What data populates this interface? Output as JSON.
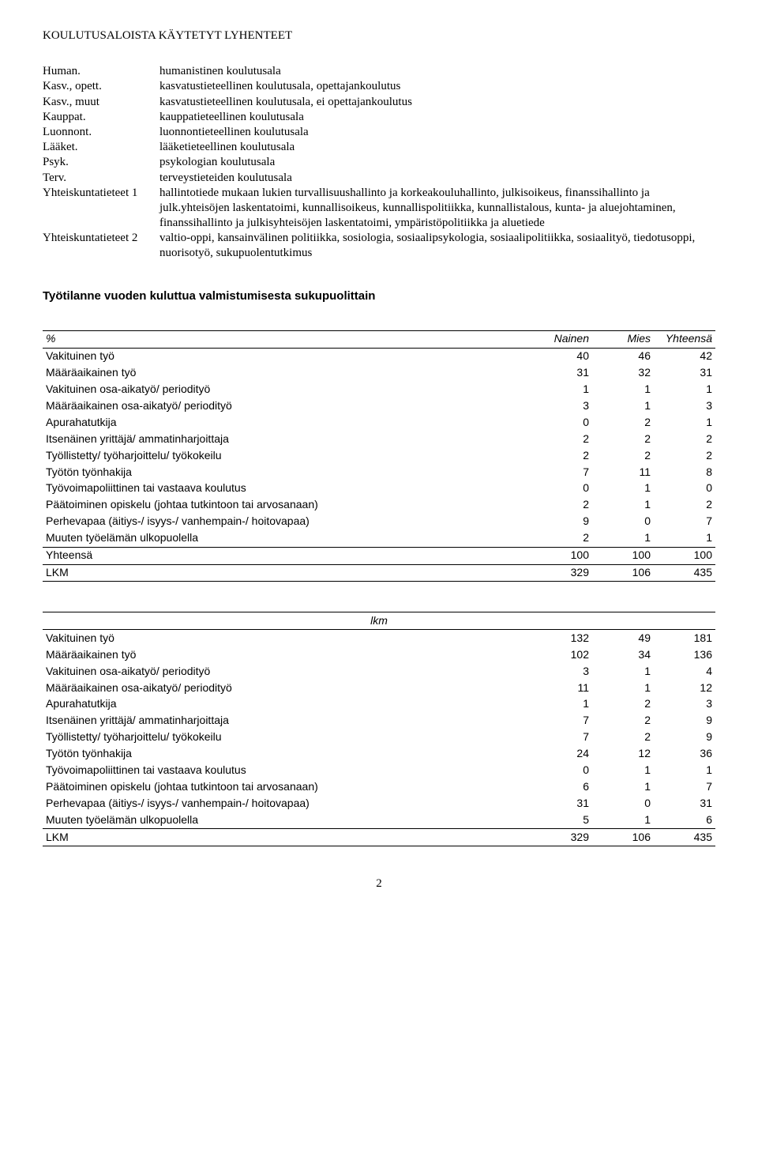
{
  "heading": "KOULUTUSALOISTA KÄYTETYT LYHENTEET",
  "abbrevs": [
    {
      "term": "Human.",
      "def": "humanistinen koulutusala"
    },
    {
      "term": "Kasv., opett.",
      "def": "kasvatustieteellinen koulutusala, opettajankoulutus"
    },
    {
      "term": "Kasv., muut",
      "def": "kasvatustieteellinen koulutusala, ei opettajankoulutus"
    },
    {
      "term": "Kauppat.",
      "def": "kauppatieteellinen koulutusala"
    },
    {
      "term": "Luonnont.",
      "def": "luonnontieteellinen koulutusala"
    },
    {
      "term": "Lääket.",
      "def": "lääketieteellinen koulutusala"
    },
    {
      "term": "Psyk.",
      "def": "psykologian koulutusala"
    },
    {
      "term": "Terv.",
      "def": "terveystieteiden koulutusala"
    },
    {
      "term": "Yhteiskuntatieteet 1",
      "def": "hallintotiede mukaan lukien turvallisuushallinto ja korkeakouluhallinto, julkisoikeus, finanssihallinto ja julk.yhteisöjen laskentatoimi, kunnallisoikeus, kunnallispolitiikka, kunnallistalous, kunta- ja aluejohtaminen, finanssihallinto ja julkisyhteisöjen laskentatoimi, ympäristöpolitiikka ja aluetiede"
    },
    {
      "term": "Yhteiskuntatieteet 2",
      "def": "valtio-oppi, kansainvälinen politiikka, sosiologia, sosiaalipsykologia, sosiaalipolitiikka, sosiaalityö, tiedotusoppi, nuorisotyö, sukupuolentutkimus"
    }
  ],
  "subheading": "Työtilanne vuoden kuluttua valmistumisesta sukupuolittain",
  "table1": {
    "head_pct": "%",
    "head_cols": [
      "Nainen",
      "Mies",
      "Yhteensä"
    ],
    "rows": [
      {
        "label": "Vakituinen työ",
        "c": [
          "40",
          "46",
          "42"
        ]
      },
      {
        "label": "Määräaikainen työ",
        "c": [
          "31",
          "32",
          "31"
        ]
      },
      {
        "label": "Vakituinen osa-aikatyö/ periodityö",
        "c": [
          "1",
          "1",
          "1"
        ]
      },
      {
        "label": "Määräaikainen osa-aikatyö/ periodityö",
        "c": [
          "3",
          "1",
          "3"
        ]
      },
      {
        "label": "Apurahatutkija",
        "c": [
          "0",
          "2",
          "1"
        ]
      },
      {
        "label": "Itsenäinen yrittäjä/ ammatinharjoittaja",
        "c": [
          "2",
          "2",
          "2"
        ]
      },
      {
        "label": "Työllistetty/ työharjoittelu/ työkokeilu",
        "c": [
          "2",
          "2",
          "2"
        ]
      },
      {
        "label": "Työtön työnhakija",
        "c": [
          "7",
          "11",
          "8"
        ]
      },
      {
        "label": "Työvoimapoliittinen tai vastaava koulutus",
        "c": [
          "0",
          "1",
          "0"
        ]
      },
      {
        "label": "Päätoiminen opiskelu (johtaa tutkintoon tai arvosanaan)",
        "c": [
          "2",
          "1",
          "2"
        ]
      },
      {
        "label": "Perhevapaa (äitiys-/ isyys-/ vanhempain-/ hoitovapaa)",
        "c": [
          "9",
          "0",
          "7"
        ]
      },
      {
        "label": "Muuten työelämän ulkopuolella",
        "c": [
          "2",
          "1",
          "1"
        ]
      }
    ],
    "total_label": "Yhteensä",
    "total": [
      "100",
      "100",
      "100"
    ],
    "lkm_label": "LKM",
    "lkm": [
      "329",
      "106",
      "435"
    ]
  },
  "table2": {
    "head_lkm": "lkm",
    "rows": [
      {
        "label": "Vakituinen työ",
        "c": [
          "132",
          "49",
          "181"
        ]
      },
      {
        "label": "Määräaikainen työ",
        "c": [
          "102",
          "34",
          "136"
        ]
      },
      {
        "label": "Vakituinen osa-aikatyö/ periodityö",
        "c": [
          "3",
          "1",
          "4"
        ]
      },
      {
        "label": "Määräaikainen osa-aikatyö/ periodityö",
        "c": [
          "11",
          "1",
          "12"
        ]
      },
      {
        "label": "Apurahatutkija",
        "c": [
          "1",
          "2",
          "3"
        ]
      },
      {
        "label": "Itsenäinen yrittäjä/ ammatinharjoittaja",
        "c": [
          "7",
          "2",
          "9"
        ]
      },
      {
        "label": "Työllistetty/ työharjoittelu/ työkokeilu",
        "c": [
          "7",
          "2",
          "9"
        ]
      },
      {
        "label": "Työtön työnhakija",
        "c": [
          "24",
          "12",
          "36"
        ]
      },
      {
        "label": "Työvoimapoliittinen tai vastaava koulutus",
        "c": [
          "0",
          "1",
          "1"
        ]
      },
      {
        "label": "Päätoiminen opiskelu (johtaa tutkintoon tai arvosanaan)",
        "c": [
          "6",
          "1",
          "7"
        ]
      },
      {
        "label": "Perhevapaa (äitiys-/ isyys-/ vanhempain-/ hoitovapaa)",
        "c": [
          "31",
          "0",
          "31"
        ]
      },
      {
        "label": "Muuten työelämän ulkopuolella",
        "c": [
          "5",
          "1",
          "6"
        ]
      }
    ],
    "lkm_label": "LKM",
    "lkm": [
      "329",
      "106",
      "435"
    ]
  },
  "page_number": "2"
}
